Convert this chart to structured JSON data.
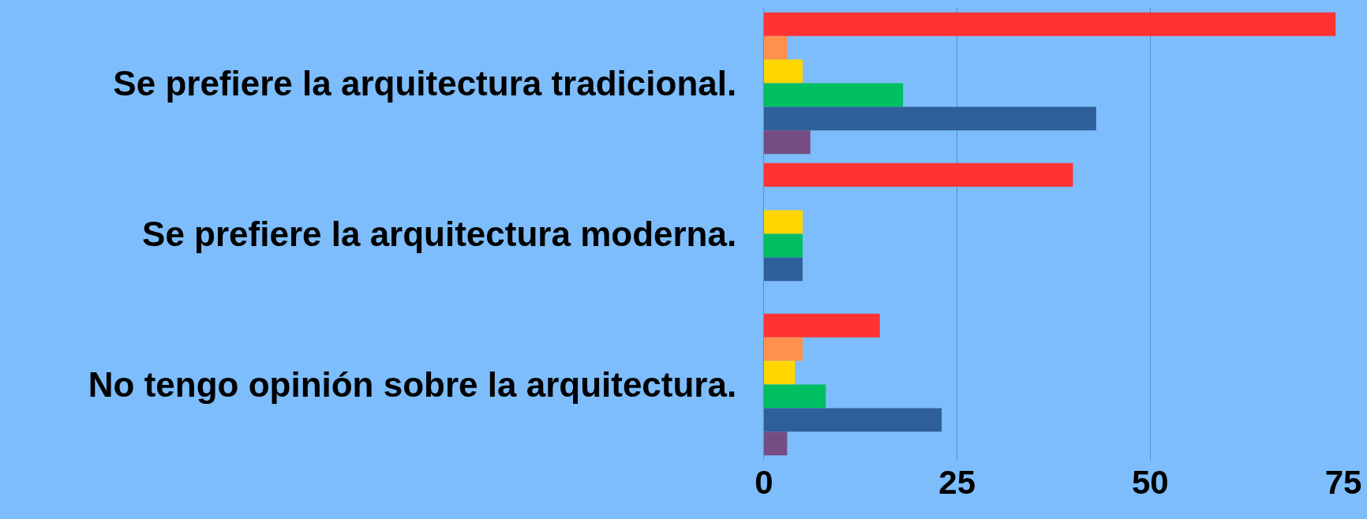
{
  "chart_data": {
    "type": "bar",
    "orientation": "horizontal",
    "categories": [
      "Se prefiere la arquitectura tradicional.",
      "Se prefiere la arquitectura moderna.",
      "No tengo opinión sobre la arquitectura."
    ],
    "series": [
      {
        "color": "#ff3333",
        "values": [
          74,
          40,
          15
        ]
      },
      {
        "color": "#ff914d",
        "values": [
          3,
          null,
          5
        ]
      },
      {
        "color": "#ffd700",
        "values": [
          5,
          5,
          4
        ]
      },
      {
        "color": "#00bf63",
        "values": [
          18,
          5,
          8
        ]
      },
      {
        "color": "#2e5f99",
        "values": [
          43,
          5,
          23
        ]
      },
      {
        "color": "#754d82",
        "values": [
          6,
          null,
          3
        ]
      }
    ],
    "xlim": [
      0,
      75
    ],
    "xticks": [
      0,
      25,
      50,
      75
    ],
    "grid": "x"
  }
}
